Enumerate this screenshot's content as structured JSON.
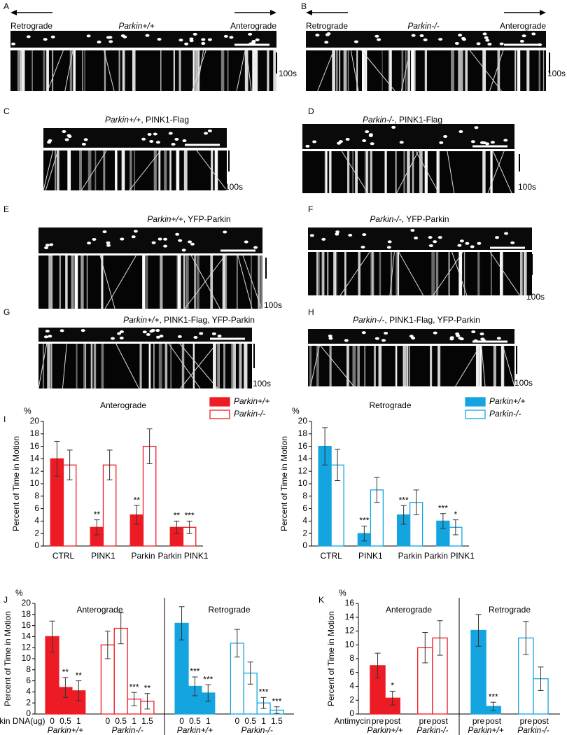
{
  "panels": [
    {
      "label": "A",
      "genotype": "Parkin+/+",
      "left": "Retrograde",
      "right": "Anterograde",
      "scale": "100s"
    },
    {
      "label": "B",
      "genotype": "Parkin-/-",
      "left": "Retrograde",
      "right": "Anterograde",
      "scale": "100s"
    },
    {
      "label": "C",
      "genotype": "Parkin+/+",
      "suffix": ", PINK1-Flag",
      "scale": "100s"
    },
    {
      "label": "D",
      "genotype": "Parkin-/-",
      "suffix": ", PINK1-Flag",
      "scale": "100s"
    },
    {
      "label": "E",
      "genotype": "Parkin+/+",
      "suffix": ", YFP-Parkin",
      "scale": "100s"
    },
    {
      "label": "F",
      "genotype": "Parkin-/-",
      "suffix": ", YFP-Parkin",
      "scale": "100s"
    },
    {
      "label": "G",
      "genotype": "Parkin+/+",
      "suffix": ", PINK1-Flag, YFP-Parkin",
      "scale": "100s"
    },
    {
      "label": "H",
      "genotype": "Parkin-/-",
      "suffix": ", PINK1-Flag, YFP-Parkin",
      "scale": "100s"
    }
  ],
  "chart_data": [
    {
      "type": "bar",
      "panel": "I",
      "title": "Anterograde",
      "unit": "%",
      "y_label": "Percent of Time in Motion",
      "categories": [
        "CTRL",
        "PINK1",
        "Parkin",
        "Parkin PINK1"
      ],
      "series": [
        {
          "name": "Parkin+/+",
          "color": "#ed1c24",
          "filled": true,
          "values": [
            14,
            3,
            5,
            3
          ],
          "errors": [
            2.8,
            1.2,
            1.5,
            1
          ],
          "annotations": [
            null,
            "**",
            "**",
            "**"
          ]
        },
        {
          "name": "Parkin-/-",
          "color": "#ed1c24",
          "filled": false,
          "values": [
            13,
            13,
            16,
            3
          ],
          "errors": [
            2.4,
            2.4,
            2.8,
            1
          ],
          "annotations": [
            null,
            null,
            null,
            "***"
          ]
        }
      ],
      "annotation_color": "#000000",
      "ylim": [
        0,
        20
      ],
      "yticks": [
        0,
        2,
        4,
        6,
        8,
        10,
        12,
        14,
        16,
        18,
        20
      ],
      "legend": "top-right"
    },
    {
      "type": "bar",
      "title": "Retrograde",
      "unit": "%",
      "y_label": "Percent of Time in Motion",
      "categories": [
        "CTRL",
        "PINK1",
        "Parkin",
        "Parkin PINK1"
      ],
      "series": [
        {
          "name": "Parkin+/+",
          "color": "#14a5e0",
          "filled": true,
          "values": [
            16,
            2,
            5,
            4
          ],
          "errors": [
            3,
            1.2,
            1.5,
            1.2
          ],
          "annotations": [
            null,
            "***",
            "***",
            "***"
          ]
        },
        {
          "name": "Parkin-/-",
          "color": "#14a5e0",
          "filled": false,
          "values": [
            13,
            9,
            7,
            3
          ],
          "errors": [
            2.5,
            2,
            2,
            1.2
          ],
          "annotations": [
            null,
            null,
            null,
            "*"
          ]
        }
      ],
      "annotation_color": "#000000",
      "ylim": [
        0,
        20
      ],
      "yticks": [
        0,
        2,
        4,
        6,
        8,
        10,
        12,
        14,
        16,
        18,
        20
      ],
      "legend": "top-right"
    },
    {
      "type": "grouped-bar",
      "panel": "J",
      "unit": "%",
      "y_label": "Percent of Time in Motion",
      "x_label": "Parkin DNA(ug)",
      "ylim": [
        0,
        20
      ],
      "yticks": [
        0,
        2,
        4,
        6,
        8,
        10,
        12,
        14,
        16,
        18,
        20
      ],
      "sections": [
        {
          "title": "Anterograde",
          "groups": [
            {
              "name": "Parkin+/+",
              "color": "#ed1c24",
              "filled": true,
              "categories": [
                "0",
                "0.5",
                "1"
              ],
              "values": [
                14,
                4.8,
                4.2
              ],
              "errors": [
                2.8,
                1.8,
                1.8
              ],
              "annotations": [
                null,
                "**",
                "**"
              ],
              "annotation_color": "#ed1c24"
            },
            {
              "name": "Parkin-/-",
              "color": "#ed1c24",
              "filled": false,
              "categories": [
                "0",
                "0.5",
                "1",
                "1.5"
              ],
              "values": [
                12.5,
                15.5,
                2.7,
                2.3
              ],
              "errors": [
                2.5,
                2.8,
                1.2,
                1.4
              ],
              "annotations": [
                null,
                null,
                "***",
                "**"
              ],
              "annotation_color": "#ed1c24"
            }
          ]
        },
        {
          "title": "Retrograde",
          "groups": [
            {
              "name": "Parkin+/+",
              "color": "#14a5e0",
              "filled": true,
              "categories": [
                "0",
                "0.5",
                "1"
              ],
              "values": [
                16.4,
                5,
                3.8
              ],
              "errors": [
                3,
                1.7,
                1.5
              ],
              "annotations": [
                null,
                "***",
                "***"
              ],
              "annotation_color": "#1f7fc0"
            },
            {
              "name": "Parkin-/-",
              "color": "#14a5e0",
              "filled": false,
              "categories": [
                "0",
                "0.5",
                "1",
                "1.5"
              ],
              "values": [
                12.8,
                7.4,
                2,
                0.7
              ],
              "errors": [
                2.5,
                2,
                1,
                0.6
              ],
              "annotations": [
                null,
                null,
                "***",
                "***"
              ],
              "annotation_color": "#1f7fc0"
            }
          ]
        }
      ]
    },
    {
      "type": "grouped-bar",
      "panel": "K",
      "unit": "%",
      "y_label": "Percent of Time in Motion",
      "x_label": "Antimycin",
      "ylim": [
        0,
        16
      ],
      "yticks": [
        0,
        2,
        4,
        6,
        8,
        10,
        12,
        14,
        16
      ],
      "sections": [
        {
          "title": "Anterograde",
          "groups": [
            {
              "name": "Parkin+/+",
              "color": "#ed1c24",
              "filled": true,
              "categories": [
                "pre",
                "post"
              ],
              "values": [
                7,
                2.3
              ],
              "errors": [
                1.8,
                1
              ],
              "annotations": [
                null,
                "*"
              ],
              "annotation_color": "#ed1c24"
            },
            {
              "name": "Parkin-/-",
              "color": "#ed1c24",
              "filled": false,
              "categories": [
                "pre",
                "post"
              ],
              "values": [
                9.6,
                11
              ],
              "errors": [
                2.2,
                2.5
              ],
              "annotations": [
                null,
                null
              ],
              "annotation_color": "#ed1c24"
            }
          ]
        },
        {
          "title": "Retrograde",
          "groups": [
            {
              "name": "Parkin+/+",
              "color": "#14a5e0",
              "filled": true,
              "categories": [
                "pre",
                "post"
              ],
              "values": [
                12.1,
                1.1
              ],
              "errors": [
                2.3,
                0.6
              ],
              "annotations": [
                null,
                "***"
              ],
              "annotation_color": "#1f7fc0"
            },
            {
              "name": "Parkin-/-",
              "color": "#14a5e0",
              "filled": false,
              "categories": [
                "pre",
                "post"
              ],
              "values": [
                11,
                5.1
              ],
              "errors": [
                2.4,
                1.7
              ],
              "annotations": [
                null,
                null
              ],
              "annotation_color": "#1f7fc0"
            }
          ]
        }
      ]
    }
  ]
}
